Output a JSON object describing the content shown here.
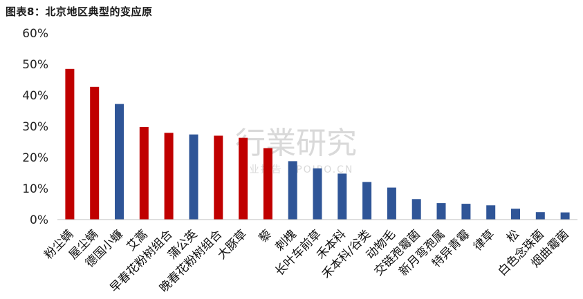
{
  "title": "图表8：北京地区典型的变应原",
  "watermark": {
    "main": "行業研究",
    "sub": "行业报告 | POIPO.CN"
  },
  "colors": {
    "red": "#C00000",
    "blue": "#2F5597"
  },
  "chart_data": {
    "type": "bar",
    "title": "图表8：北京地区典型的变应原",
    "xlabel": "",
    "ylabel": "",
    "ylim": [
      0,
      0.6
    ],
    "yticks": [
      0,
      0.1,
      0.2,
      0.3,
      0.4,
      0.5,
      0.6
    ],
    "ytick_labels": [
      "0%",
      "10%",
      "20%",
      "30%",
      "40%",
      "50%",
      "60%"
    ],
    "grid": false,
    "categories": [
      "粉尘螨",
      "屋尘螨",
      "德国小蠊",
      "艾蒿",
      "早春花粉树组合",
      "蒲公英",
      "晚春花粉树组合",
      "大豚草",
      "藜",
      "刺槐",
      "长叶车前草",
      "禾本科",
      "禾本科/谷类",
      "动物毛",
      "交链孢霉菌",
      "新月弯孢属",
      "特异青霉",
      "律草",
      "松",
      "白色念珠菌",
      "烟曲霉菌"
    ],
    "values": [
      0.485,
      0.427,
      0.372,
      0.298,
      0.279,
      0.274,
      0.27,
      0.263,
      0.23,
      0.188,
      0.165,
      0.148,
      0.121,
      0.103,
      0.066,
      0.053,
      0.051,
      0.046,
      0.035,
      0.024,
      0.023
    ],
    "bar_colors": [
      "red",
      "red",
      "blue",
      "red",
      "red",
      "blue",
      "red",
      "red",
      "red",
      "blue",
      "blue",
      "blue",
      "blue",
      "blue",
      "blue",
      "blue",
      "blue",
      "blue",
      "blue",
      "blue",
      "blue"
    ]
  }
}
